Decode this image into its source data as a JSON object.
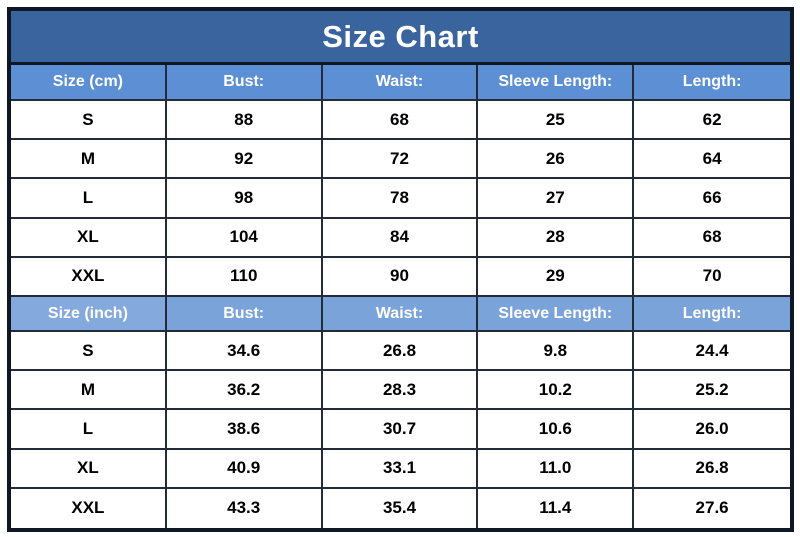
{
  "title": "Size Chart",
  "colors": {
    "title_bar": "#3a649e",
    "header_cm_row": "#5c8fd3",
    "header_inch_row": "#7aa3da",
    "border": "#0f1624",
    "cell_background": "#ffffff",
    "header_text": "#ffffff",
    "cell_text": "#000000"
  },
  "sections": [
    {
      "unit": "cm",
      "header": [
        "Size (cm)",
        "Bust:",
        "Waist:",
        "Sleeve Length:",
        "Length:"
      ],
      "rows": [
        [
          "S",
          "88",
          "68",
          "25",
          "62"
        ],
        [
          "M",
          "92",
          "72",
          "26",
          "64"
        ],
        [
          "L",
          "98",
          "78",
          "27",
          "66"
        ],
        [
          "XL",
          "104",
          "84",
          "28",
          "68"
        ],
        [
          "XXL",
          "110",
          "90",
          "29",
          "70"
        ]
      ]
    },
    {
      "unit": "inch",
      "header": [
        "Size (inch)",
        "Bust:",
        "Waist:",
        "Sleeve Length:",
        "Length:"
      ],
      "rows": [
        [
          "S",
          "34.6",
          "26.8",
          "9.8",
          "24.4"
        ],
        [
          "M",
          "36.2",
          "28.3",
          "10.2",
          "25.2"
        ],
        [
          "L",
          "38.6",
          "30.7",
          "10.6",
          "26.0"
        ],
        [
          "XL",
          "40.9",
          "33.1",
          "11.0",
          "26.8"
        ],
        [
          "XXL",
          "43.3",
          "35.4",
          "11.4",
          "27.6"
        ]
      ]
    }
  ],
  "chart_data": {
    "type": "table",
    "title": "Size Chart",
    "columns": [
      "Size",
      "Bust",
      "Waist",
      "Sleeve Length",
      "Length"
    ],
    "units": [
      "cm",
      "inch"
    ],
    "cm": {
      "S": [
        88,
        68,
        25,
        62
      ],
      "M": [
        92,
        72,
        26,
        64
      ],
      "L": [
        98,
        78,
        27,
        66
      ],
      "XL": [
        104,
        84,
        28,
        68
      ],
      "XXL": [
        110,
        90,
        29,
        70
      ]
    },
    "inch": {
      "S": [
        34.6,
        26.8,
        9.8,
        24.4
      ],
      "M": [
        36.2,
        28.3,
        10.2,
        25.2
      ],
      "L": [
        38.6,
        30.7,
        10.6,
        26.0
      ],
      "XL": [
        40.9,
        33.1,
        11.0,
        26.8
      ],
      "XXL": [
        43.3,
        35.4,
        11.4,
        27.6
      ]
    }
  }
}
